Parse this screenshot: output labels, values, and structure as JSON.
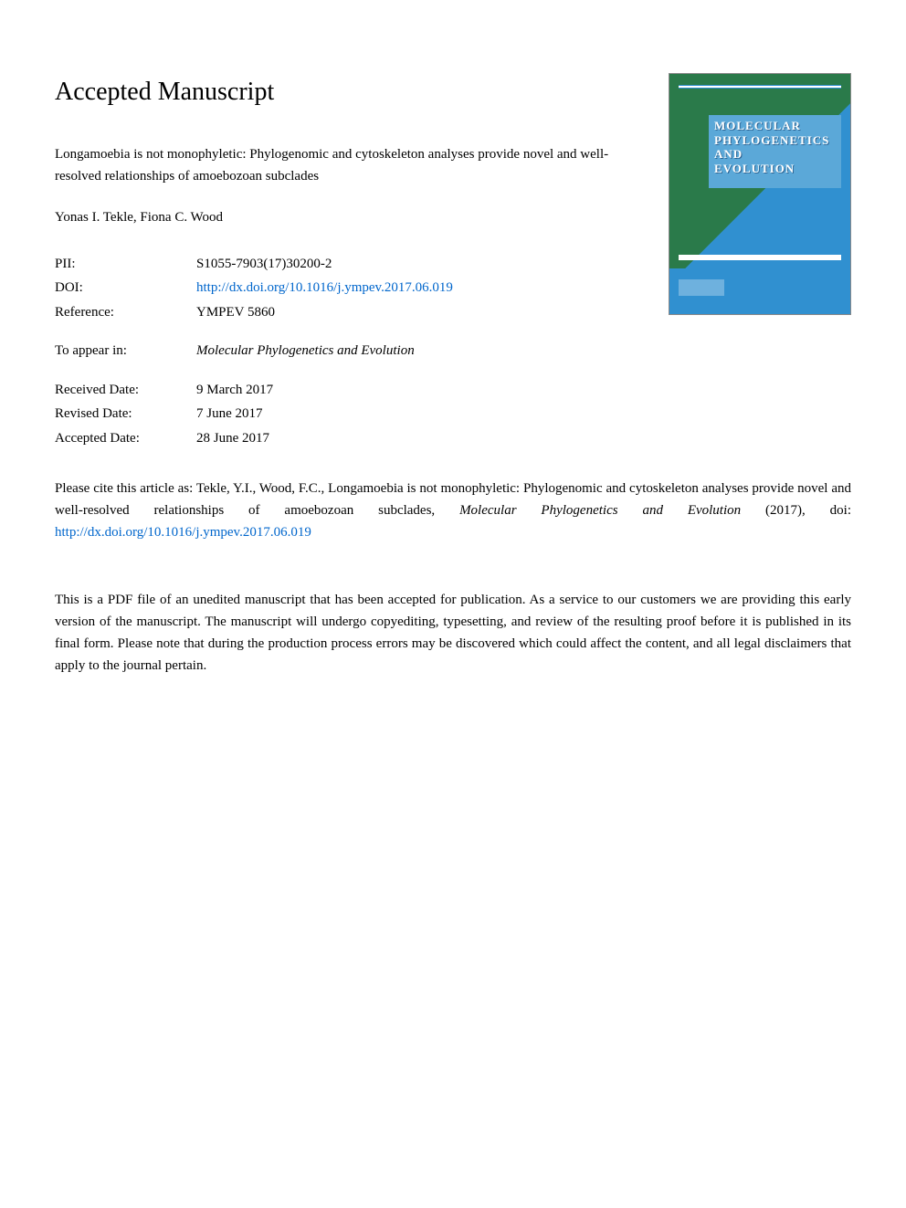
{
  "heading": "Accepted Manuscript",
  "article_title": "Longamoebia is not monophyletic: Phylogenomic and cytoskeleton analyses provide novel and well-resolved relationships of amoebozoan subclades",
  "authors": "Yonas I. Tekle, Fiona C. Wood",
  "metadata": {
    "pii_label": "PII:",
    "pii_value": "S1055-7903(17)30200-2",
    "doi_label": "DOI:",
    "doi_value": "http://dx.doi.org/10.1016/j.ympev.2017.06.019",
    "reference_label": "Reference:",
    "reference_value": "YMPEV 5860",
    "appear_label": "To appear in:",
    "appear_value": "Molecular Phylogenetics and Evolution",
    "received_label": "Received Date:",
    "received_value": "9 March 2017",
    "revised_label": "Revised Date:",
    "revised_value": "7 June 2017",
    "accepted_label": "Accepted Date:",
    "accepted_value": "28 June 2017"
  },
  "journal_cover": {
    "line1": "MOLECULAR",
    "line2": "PHYLOGENETICS",
    "line3": "AND",
    "line4": "EVOLUTION"
  },
  "citation": {
    "prefix": "Please cite this article as: Tekle, Y.I., Wood, F.C., Longamoebia is not monophyletic: Phylogenomic and cytoskeleton analyses provide novel and well-resolved relationships of amoebozoan subclades, ",
    "journal": "Molecular Phylogenetics and Evolution",
    "year": " (2017), doi: ",
    "link": "http://dx.doi.org/10.1016/j.ympev.2017.06.019"
  },
  "disclaimer": "This is a PDF file of an unedited manuscript that has been accepted for publication. As a service to our customers we are providing this early version of the manuscript. The manuscript will undergo copyediting, typesetting, and review of the resulting proof before it is published in its final form. Please note that during the production process errors may be discovered which could affect the content, and all legal disclaimers that apply to the journal pertain.",
  "colors": {
    "link_color": "#0066cc",
    "cover_green": "#2a7a4a",
    "cover_blue": "#3090d0",
    "cover_title_bg": "#5ba8d8",
    "text_color": "#000000",
    "background": "#ffffff"
  },
  "typography": {
    "heading_fontsize": 28,
    "body_fontsize": 15,
    "cover_title_fontsize": 13
  }
}
